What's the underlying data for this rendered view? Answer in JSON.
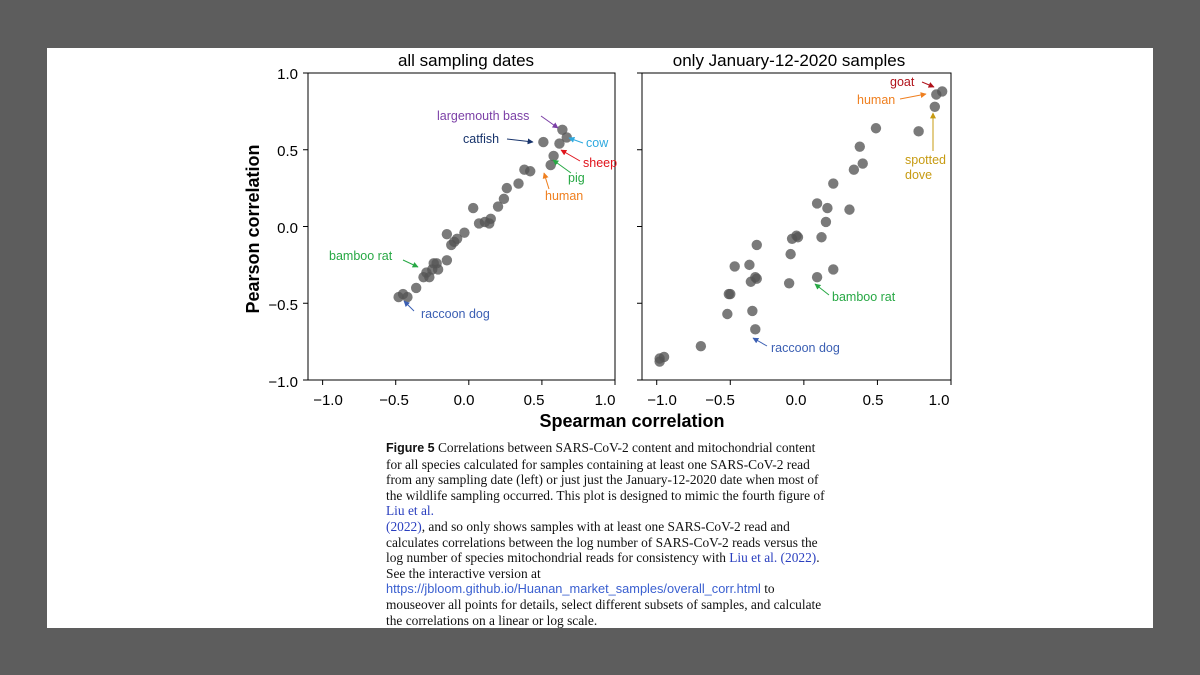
{
  "figure": {
    "y_axis_title": "Pearson correlation",
    "x_axis_title": "Spearman correlation"
  },
  "caption": {
    "label": "Figure 5",
    "text_1": "Correlations between SARS-CoV-2 content and mitochondrial content for all species calculated for samples containing at least one SARS-CoV-2 read from any sampling date (left) or just just the January-12-2020 date when most of the wildlife sampling occurred. This plot is designed to mimic the fourth figure of ",
    "cite_1": "Liu et al.",
    "cite_1_year": "(2022)",
    "text_2": ", and so only shows samples with at least one SARS-CoV-2 read and calculates correlations between the log number of SARS-CoV-2 reads versus the log number of species mitochondrial reads for consistency with ",
    "cite_2": "Liu et al. (2022)",
    "text_3": ". See the interactive version at ",
    "url": "https://jbloom.github.io/Huanan_market_samples/overall_corr.html",
    "text_4": " to mouseover all points for details, select different subsets of samples, and calculate the correlations on a linear or log scale."
  },
  "colors": {
    "point": "#555555",
    "purple": "#7b3fa6",
    "navy": "#17336b",
    "cyan": "#2ea9df",
    "red": "#e0141c",
    "green": "#27a844",
    "orange": "#ef7f1f",
    "blue": "#3b5fb3",
    "gold": "#c79b12",
    "darkred": "#b0121a"
  },
  "chart_data": [
    {
      "type": "scatter",
      "title": "all sampling dates",
      "xlabel": "Spearman correlation",
      "ylabel": "Pearson correlation",
      "xlim": [
        -1.1,
        1.0
      ],
      "ylim": [
        -1.0,
        1.0
      ],
      "xticks": [
        "−1.0",
        "−0.5",
        "0.0",
        "0.5",
        "1.0"
      ],
      "yticks": [
        "1.0",
        "0.5",
        "0.0",
        "−0.5",
        "−1.0"
      ],
      "points": [
        {
          "x": -0.48,
          "y": -0.46
        },
        {
          "x": -0.45,
          "y": -0.44
        },
        {
          "x": -0.42,
          "y": -0.46
        },
        {
          "x": -0.36,
          "y": -0.4
        },
        {
          "x": -0.31,
          "y": -0.33
        },
        {
          "x": -0.29,
          "y": -0.3
        },
        {
          "x": -0.27,
          "y": -0.33
        },
        {
          "x": -0.25,
          "y": -0.28
        },
        {
          "x": -0.24,
          "y": -0.24
        },
        {
          "x": -0.22,
          "y": -0.24
        },
        {
          "x": -0.21,
          "y": -0.28
        },
        {
          "x": -0.15,
          "y": -0.22
        },
        {
          "x": -0.12,
          "y": -0.12
        },
        {
          "x": -0.1,
          "y": -0.1
        },
        {
          "x": -0.15,
          "y": -0.05
        },
        {
          "x": -0.08,
          "y": -0.08
        },
        {
          "x": -0.03,
          "y": -0.04
        },
        {
          "x": 0.03,
          "y": 0.12
        },
        {
          "x": 0.07,
          "y": 0.02
        },
        {
          "x": 0.11,
          "y": 0.03
        },
        {
          "x": 0.14,
          "y": 0.02
        },
        {
          "x": 0.15,
          "y": 0.05
        },
        {
          "x": 0.2,
          "y": 0.13
        },
        {
          "x": 0.24,
          "y": 0.18
        },
        {
          "x": 0.26,
          "y": 0.25
        },
        {
          "x": 0.34,
          "y": 0.28
        },
        {
          "x": 0.38,
          "y": 0.37
        },
        {
          "x": 0.42,
          "y": 0.36
        },
        {
          "x": 0.51,
          "y": 0.55
        },
        {
          "x": 0.56,
          "y": 0.4
        },
        {
          "x": 0.58,
          "y": 0.46
        },
        {
          "x": 0.62,
          "y": 0.54
        },
        {
          "x": 0.64,
          "y": 0.63
        },
        {
          "x": 0.67,
          "y": 0.58
        }
      ],
      "annotations": [
        {
          "text": "largemouth bass",
          "color": "purple"
        },
        {
          "text": "catfish",
          "color": "navy"
        },
        {
          "text": "cow",
          "color": "cyan"
        },
        {
          "text": "sheep",
          "color": "red"
        },
        {
          "text": "pig",
          "color": "green"
        },
        {
          "text": "human",
          "color": "orange"
        },
        {
          "text": "bamboo rat",
          "color": "green"
        },
        {
          "text": "raccoon dog",
          "color": "blue"
        }
      ]
    },
    {
      "type": "scatter",
      "title": "only January-12-2020 samples",
      "xlabel": "Spearman correlation",
      "ylabel": "Pearson correlation",
      "xlim": [
        -1.1,
        1.0
      ],
      "ylim": [
        -1.0,
        1.0
      ],
      "xticks": [
        "−1.0",
        "−0.5",
        "0.0",
        "0.5",
        "1.0"
      ],
      "points": [
        {
          "x": -0.98,
          "y": -0.88
        },
        {
          "x": -0.98,
          "y": -0.86
        },
        {
          "x": -0.95,
          "y": -0.85
        },
        {
          "x": -0.7,
          "y": -0.78
        },
        {
          "x": -0.52,
          "y": -0.57
        },
        {
          "x": -0.51,
          "y": -0.44
        },
        {
          "x": -0.5,
          "y": -0.44
        },
        {
          "x": -0.47,
          "y": -0.26
        },
        {
          "x": -0.37,
          "y": -0.25
        },
        {
          "x": -0.36,
          "y": -0.36
        },
        {
          "x": -0.35,
          "y": -0.55
        },
        {
          "x": -0.33,
          "y": -0.67
        },
        {
          "x": -0.33,
          "y": -0.33
        },
        {
          "x": -0.32,
          "y": -0.12
        },
        {
          "x": -0.32,
          "y": -0.34
        },
        {
          "x": -0.1,
          "y": -0.37
        },
        {
          "x": -0.09,
          "y": -0.18
        },
        {
          "x": -0.08,
          "y": -0.08
        },
        {
          "x": -0.05,
          "y": -0.06
        },
        {
          "x": -0.04,
          "y": -0.07
        },
        {
          "x": 0.09,
          "y": 0.15
        },
        {
          "x": 0.09,
          "y": -0.33
        },
        {
          "x": 0.12,
          "y": -0.07
        },
        {
          "x": 0.15,
          "y": 0.03
        },
        {
          "x": 0.16,
          "y": 0.12
        },
        {
          "x": 0.2,
          "y": -0.28
        },
        {
          "x": 0.2,
          "y": 0.28
        },
        {
          "x": 0.31,
          "y": 0.11
        },
        {
          "x": 0.34,
          "y": 0.37
        },
        {
          "x": 0.38,
          "y": 0.52
        },
        {
          "x": 0.4,
          "y": 0.41
        },
        {
          "x": 0.49,
          "y": 0.64
        },
        {
          "x": 0.78,
          "y": 0.62
        },
        {
          "x": 0.89,
          "y": 0.78
        },
        {
          "x": 0.9,
          "y": 0.86
        },
        {
          "x": 0.94,
          "y": 0.88
        }
      ],
      "annotations": [
        {
          "text": "goat",
          "color": "darkred"
        },
        {
          "text": "human",
          "color": "orange"
        },
        {
          "text": "spotted",
          "color": "gold"
        },
        {
          "text": "dove",
          "color": "gold"
        },
        {
          "text": "bamboo rat",
          "color": "green"
        },
        {
          "text": "raccoon dog",
          "color": "blue"
        }
      ]
    }
  ]
}
